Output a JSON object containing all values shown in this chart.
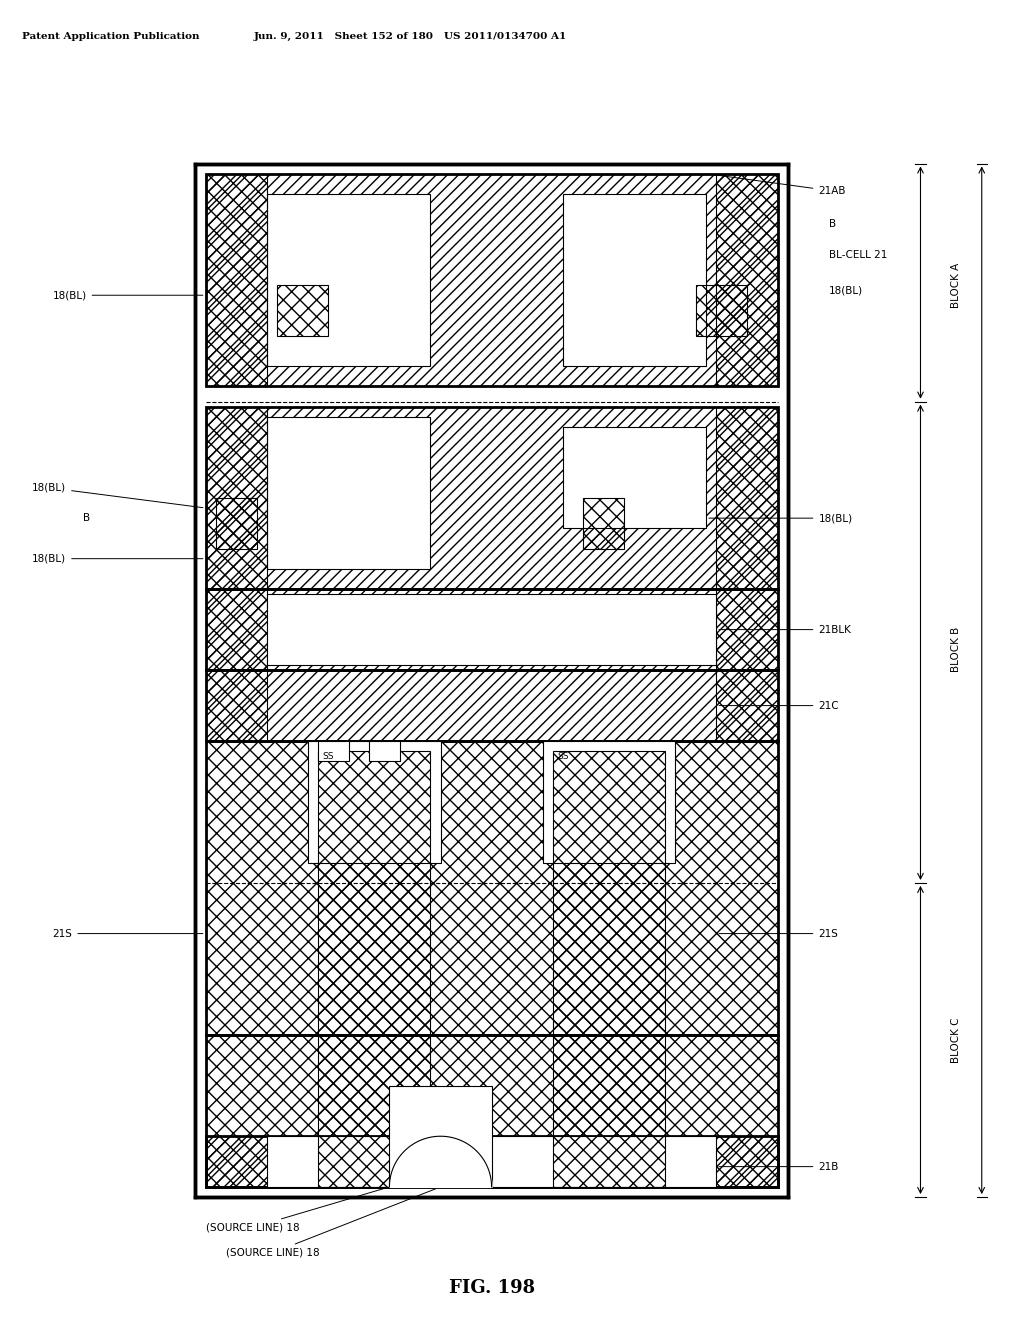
{
  "title": "FIG. 198",
  "header_left": "Patent Application Publication",
  "header_right": "Jun. 9, 2011   Sheet 152 of 180   US 2011/0134700 A1",
  "bg_color": "#ffffff",
  "fg_color": "#000000",
  "fig_width": 10.24,
  "fig_height": 13.2
}
